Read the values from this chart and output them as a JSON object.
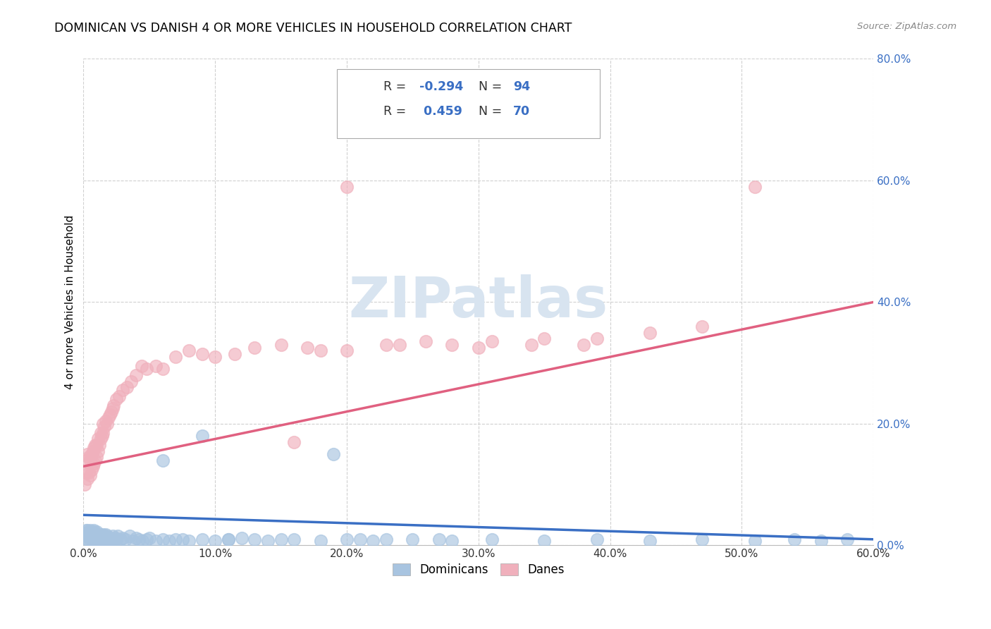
{
  "title": "DOMINICAN VS DANISH 4 OR MORE VEHICLES IN HOUSEHOLD CORRELATION CHART",
  "source": "Source: ZipAtlas.com",
  "ylabel": "4 or more Vehicles in Household",
  "xlim": [
    0.0,
    0.6
  ],
  "ylim": [
    0.0,
    0.8
  ],
  "xticks": [
    0.0,
    0.1,
    0.2,
    0.3,
    0.4,
    0.5,
    0.6
  ],
  "yticks": [
    0.0,
    0.2,
    0.4,
    0.6,
    0.8
  ],
  "xtick_labels": [
    "0.0%",
    "10.0%",
    "20.0%",
    "30.0%",
    "40.0%",
    "50.0%",
    "60.0%"
  ],
  "ytick_labels": [
    "0.0%",
    "20.0%",
    "40.0%",
    "60.0%",
    "80.0%"
  ],
  "dominicans_color": "#a8c4e0",
  "danes_color": "#f0b0bc",
  "dominicans_line_color": "#3a6fc4",
  "danes_line_color": "#e06080",
  "R_dominicans": -0.294,
  "N_dominicans": 94,
  "R_danes": 0.459,
  "N_danes": 70,
  "legend_label_dominicans": "Dominicans",
  "legend_label_danes": "Danes",
  "background_color": "#ffffff",
  "grid_color": "#d0d0d0",
  "dom_line_x0": 0.0,
  "dom_line_y0": 0.05,
  "dom_line_x1": 0.6,
  "dom_line_y1": 0.01,
  "dan_line_x0": 0.0,
  "dan_line_y0": 0.13,
  "dan_line_x1": 0.6,
  "dan_line_y1": 0.4,
  "dominicans_x": [
    0.001,
    0.002,
    0.002,
    0.003,
    0.003,
    0.003,
    0.004,
    0.004,
    0.004,
    0.005,
    0.005,
    0.005,
    0.006,
    0.006,
    0.007,
    0.007,
    0.007,
    0.008,
    0.008,
    0.008,
    0.009,
    0.009,
    0.01,
    0.01,
    0.01,
    0.011,
    0.011,
    0.012,
    0.012,
    0.013,
    0.013,
    0.014,
    0.014,
    0.015,
    0.015,
    0.016,
    0.016,
    0.017,
    0.017,
    0.018,
    0.018,
    0.019,
    0.02,
    0.021,
    0.022,
    0.023,
    0.024,
    0.025,
    0.026,
    0.028,
    0.03,
    0.032,
    0.035,
    0.038,
    0.04,
    0.042,
    0.045,
    0.048,
    0.05,
    0.055,
    0.06,
    0.065,
    0.07,
    0.08,
    0.09,
    0.1,
    0.11,
    0.12,
    0.14,
    0.16,
    0.18,
    0.2,
    0.22,
    0.25,
    0.28,
    0.31,
    0.35,
    0.39,
    0.43,
    0.47,
    0.51,
    0.54,
    0.56,
    0.58,
    0.19,
    0.21,
    0.23,
    0.27,
    0.09,
    0.11,
    0.13,
    0.15,
    0.06,
    0.075
  ],
  "dominicans_y": [
    0.02,
    0.015,
    0.025,
    0.01,
    0.018,
    0.025,
    0.008,
    0.015,
    0.022,
    0.01,
    0.018,
    0.025,
    0.012,
    0.02,
    0.008,
    0.015,
    0.022,
    0.01,
    0.018,
    0.025,
    0.012,
    0.02,
    0.008,
    0.015,
    0.022,
    0.01,
    0.018,
    0.008,
    0.015,
    0.01,
    0.018,
    0.008,
    0.015,
    0.01,
    0.018,
    0.008,
    0.015,
    0.01,
    0.018,
    0.008,
    0.015,
    0.01,
    0.012,
    0.01,
    0.015,
    0.008,
    0.012,
    0.01,
    0.015,
    0.01,
    0.012,
    0.01,
    0.015,
    0.008,
    0.012,
    0.01,
    0.008,
    0.01,
    0.012,
    0.008,
    0.01,
    0.008,
    0.01,
    0.008,
    0.01,
    0.008,
    0.01,
    0.012,
    0.008,
    0.01,
    0.008,
    0.01,
    0.008,
    0.01,
    0.008,
    0.01,
    0.008,
    0.01,
    0.008,
    0.01,
    0.008,
    0.01,
    0.008,
    0.01,
    0.15,
    0.01,
    0.01,
    0.01,
    0.18,
    0.01,
    0.01,
    0.01,
    0.14,
    0.01
  ],
  "danes_x": [
    0.001,
    0.002,
    0.002,
    0.003,
    0.003,
    0.004,
    0.004,
    0.005,
    0.005,
    0.006,
    0.006,
    0.007,
    0.007,
    0.008,
    0.008,
    0.009,
    0.009,
    0.01,
    0.01,
    0.011,
    0.011,
    0.012,
    0.013,
    0.013,
    0.014,
    0.015,
    0.015,
    0.016,
    0.017,
    0.018,
    0.019,
    0.02,
    0.021,
    0.022,
    0.023,
    0.025,
    0.027,
    0.03,
    0.033,
    0.036,
    0.04,
    0.044,
    0.048,
    0.055,
    0.06,
    0.07,
    0.08,
    0.09,
    0.1,
    0.115,
    0.13,
    0.15,
    0.17,
    0.2,
    0.23,
    0.26,
    0.3,
    0.34,
    0.39,
    0.43,
    0.47,
    0.51,
    0.28,
    0.31,
    0.35,
    0.38,
    0.2,
    0.24,
    0.18,
    0.16
  ],
  "danes_y": [
    0.1,
    0.12,
    0.14,
    0.11,
    0.15,
    0.12,
    0.145,
    0.115,
    0.14,
    0.125,
    0.15,
    0.13,
    0.155,
    0.135,
    0.16,
    0.14,
    0.165,
    0.145,
    0.165,
    0.155,
    0.175,
    0.165,
    0.175,
    0.185,
    0.18,
    0.185,
    0.2,
    0.195,
    0.205,
    0.2,
    0.21,
    0.215,
    0.22,
    0.225,
    0.23,
    0.24,
    0.245,
    0.255,
    0.26,
    0.27,
    0.28,
    0.295,
    0.29,
    0.295,
    0.29,
    0.31,
    0.32,
    0.315,
    0.31,
    0.315,
    0.325,
    0.33,
    0.325,
    0.32,
    0.33,
    0.335,
    0.325,
    0.33,
    0.34,
    0.35,
    0.36,
    0.59,
    0.33,
    0.335,
    0.34,
    0.33,
    0.59,
    0.33,
    0.32,
    0.17
  ],
  "watermark_text": "ZIPatlas",
  "watermark_color": "#d8e4f0",
  "watermark_fontsize": 58
}
